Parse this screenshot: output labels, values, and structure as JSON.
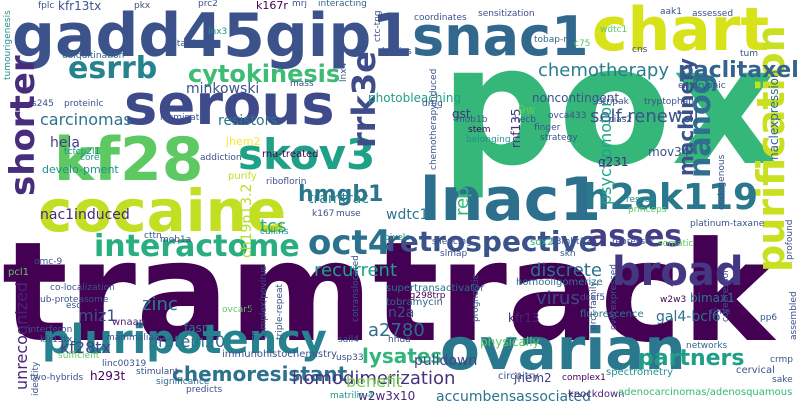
{
  "palette": {
    "dark_purple": "#440154",
    "indigo": "#3b528b",
    "teal": "#21918c",
    "green": "#5ec962",
    "yellow": "#fde725"
  },
  "words": [
    {
      "text": "tramtrack",
      "color": "#440154"
    },
    {
      "text": "pox",
      "color": "#35b779"
    },
    {
      "text": "gadd45gip1",
      "color": "#3b528b"
    },
    {
      "text": "snac1",
      "color": "#31688e"
    },
    {
      "text": "chart",
      "color": "#d7e219"
    },
    {
      "text": "serous",
      "color": "#3e4a89"
    },
    {
      "text": "kf28",
      "color": "#5ec962"
    },
    {
      "text": "cocaine",
      "color": "#c2df23"
    },
    {
      "text": "lnac1",
      "color": "#2d708e"
    },
    {
      "text": "ovarian",
      "color": "#2a788e"
    },
    {
      "text": "pluripotency",
      "color": "#26828e"
    },
    {
      "text": "skov3",
      "color": "#1fa187"
    },
    {
      "text": "purification",
      "color": "#c8e020"
    },
    {
      "text": "esrrb",
      "color": "#25838e"
    },
    {
      "text": "cytokinesis",
      "color": "#3dbc74"
    },
    {
      "text": "shorter",
      "color": "#472d7b"
    },
    {
      "text": "interactome",
      "color": "#29af7f"
    },
    {
      "text": "oct4",
      "color": "#2c728e"
    },
    {
      "text": "h2ak119",
      "color": "#2a788e"
    },
    {
      "text": "retrospective",
      "color": "#3b528b"
    },
    {
      "text": "broad",
      "color": "#453781"
    },
    {
      "text": "asses",
      "color": "#433e85"
    },
    {
      "text": "nanog",
      "color": "#2e6e8e"
    },
    {
      "text": "rrk3e",
      "color": "#3e4c8a"
    },
    {
      "text": "hmgb1",
      "color": "#2b758e"
    },
    {
      "text": "paclitaxel",
      "color": "#32648e"
    },
    {
      "text": "chemotherapy",
      "color": "#287d8e"
    },
    {
      "text": "chemoresistant",
      "color": "#2c718e"
    },
    {
      "text": "homodimerization",
      "color": "#46327e"
    },
    {
      "text": "unrecognized",
      "color": "#482475"
    },
    {
      "text": "self-renewal",
      "color": "#3a538b"
    },
    {
      "text": "machinery",
      "color": "#3b518b"
    },
    {
      "text": "partners",
      "color": "#1f9f88"
    },
    {
      "text": "lysates",
      "color": "#31b57b"
    },
    {
      "text": "carcinomas",
      "color": "#2c728e"
    },
    {
      "text": "tcs",
      "color": "#25ab82"
    },
    {
      "text": "tramtrac",
      "color": "#25848e"
    },
    {
      "text": "psychomotor",
      "color": "#20a386"
    },
    {
      "text": "reprogramming",
      "color": "#35b779"
    },
    {
      "text": "recurrent",
      "color": "#1fa088"
    },
    {
      "text": "discrete",
      "color": "#2d718e"
    },
    {
      "text": "zinc",
      "color": "#277f8e"
    },
    {
      "text": "miz1",
      "color": "#3b528b"
    },
    {
      "text": "protein20",
      "color": "#2c728e"
    },
    {
      "text": "kf28tx",
      "color": "#414487"
    },
    {
      "text": "a2780",
      "color": "#2e6d8e"
    },
    {
      "text": "virus",
      "color": "#3e4989"
    },
    {
      "text": "benefit",
      "color": "#7ad151"
    },
    {
      "text": "pulldown",
      "color": "#404688"
    },
    {
      "text": "w2w3x10",
      "color": "#482677"
    },
    {
      "text": "accumbensassociated",
      "color": "#2c738e"
    },
    {
      "text": "minkowski",
      "color": "#3b528b"
    },
    {
      "text": "resistors",
      "color": "#2a768e"
    },
    {
      "text": "hela",
      "color": "#433e85"
    },
    {
      "text": "nac1induced",
      "color": "#472a7a"
    },
    {
      "text": "ch19p13.2",
      "color": "#b5de2b"
    },
    {
      "text": "wdtc1",
      "color": "#2b748e"
    },
    {
      "text": "gal4-bcl6",
      "color": "#2d708e"
    },
    {
      "text": "bimax1",
      "color": "#2a768e"
    },
    {
      "text": "kfr13",
      "color": "#482475"
    },
    {
      "text": "n2a",
      "color": "#3b528b"
    },
    {
      "text": "tobramycin",
      "color": "#31688e"
    },
    {
      "text": "physically",
      "color": "#5ec962"
    },
    {
      "text": "jhem2",
      "color": "#414487"
    },
    {
      "text": "kfr13tx",
      "color": "#3b528b"
    },
    {
      "text": "q231",
      "color": "#472c7a"
    },
    {
      "text": "mov34",
      "color": "#3b518b"
    },
    {
      "text": "naclexpression",
      "color": "#31688e"
    },
    {
      "text": "sox2",
      "color": "#2db27d"
    },
    {
      "text": "gst",
      "color": "#46337f"
    },
    {
      "text": "rnf135",
      "color": "#472f7d"
    },
    {
      "text": "9w",
      "color": "#5ec962"
    },
    {
      "text": "noncontingent",
      "color": "#3b528b"
    },
    {
      "text": "photobleaching",
      "color": "#1f9e89"
    },
    {
      "text": "fasn",
      "color": "#2c738e"
    },
    {
      "text": "wnaap",
      "color": "#482475"
    },
    {
      "text": "mammalian",
      "color": "#3b528b"
    },
    {
      "text": "immunohistochemistry",
      "color": "#3b528b"
    },
    {
      "text": "h293t",
      "color": "#440154"
    },
    {
      "text": "linc00319",
      "color": "#3b528b"
    },
    {
      "text": "significance",
      "color": "#31688e"
    },
    {
      "text": "spectrometry",
      "color": "#21918c"
    },
    {
      "text": "supertransactivator",
      "color": "#2c728e"
    },
    {
      "text": "homooligomerize",
      "color": "#2c728e"
    },
    {
      "text": "fluorescence",
      "color": "#2a788e"
    },
    {
      "text": "knockdown",
      "color": "#482475"
    },
    {
      "text": "adenocarcinomas/adenosquamous",
      "color": "#35b779"
    },
    {
      "text": "cervical",
      "color": "#3b528b"
    },
    {
      "text": "networks",
      "color": "#31688e"
    },
    {
      "text": "circuitry",
      "color": "#3b528b"
    },
    {
      "text": "complex1",
      "color": "#440154"
    },
    {
      "text": "kfr13tx",
      "color": "#3b528b"
    },
    {
      "text": "pkx",
      "color": "#3b528b"
    },
    {
      "text": "prc2",
      "color": "#3b528b"
    },
    {
      "text": "k167r",
      "color": "#440154"
    },
    {
      "text": "mrj",
      "color": "#3b528b"
    },
    {
      "text": "interacting",
      "color": "#31688e"
    },
    {
      "text": "fplc",
      "color": "#3b528b"
    },
    {
      "text": "ubiquitination",
      "color": "#31688e"
    },
    {
      "text": "lnx3",
      "color": "#21918c"
    },
    {
      "text": "coordinates",
      "color": "#3b528b"
    },
    {
      "text": "sensitization",
      "color": "#3b528b"
    },
    {
      "text": "tobap-ms",
      "color": "#31688e"
    },
    {
      "text": "wdtc1",
      "color": "#5ec962"
    },
    {
      "text": "aak1",
      "color": "#3b528b"
    },
    {
      "text": "assessed",
      "color": "#3b528b"
    },
    {
      "text": "stag1",
      "color": "#3b528b"
    },
    {
      "text": "mass",
      "color": "#3b528b"
    },
    {
      "text": "illuminate",
      "color": "#3b528b"
    },
    {
      "text": "proteinlc",
      "color": "#3b528b"
    },
    {
      "text": "tcfcp2l1",
      "color": "#21918c"
    },
    {
      "text": "develo-pment",
      "color": "#21918c"
    },
    {
      "text": "core",
      "color": "#21918c"
    },
    {
      "text": "jhem2",
      "color": "#fde725"
    },
    {
      "text": "addiction",
      "color": "#3b528b"
    },
    {
      "text": "rna-treated",
      "color": "#440154"
    },
    {
      "text": "purify",
      "color": "#c2df23"
    },
    {
      "text": "riboflorin",
      "color": "#3b528b"
    },
    {
      "text": "cttn",
      "color": "#3b528b"
    },
    {
      "text": "k167",
      "color": "#3b528b"
    },
    {
      "text": "muse",
      "color": "#3b528b"
    },
    {
      "text": "cullins",
      "color": "#21918c"
    },
    {
      "text": "pixels",
      "color": "#21918c"
    },
    {
      "text": "silencing",
      "color": "#3b528b"
    },
    {
      "text": "slmap",
      "color": "#3b528b"
    },
    {
      "text": "mob1b",
      "color": "#3b528b"
    },
    {
      "text": "belonging",
      "color": "#21918c"
    },
    {
      "text": "stem",
      "color": "#440154"
    },
    {
      "text": "hecb",
      "color": "#3b528b"
    },
    {
      "text": "finger",
      "color": "#3b528b"
    },
    {
      "text": "strategy",
      "color": "#3b528b"
    },
    {
      "text": "ovca433",
      "color": "#3b528b"
    },
    {
      "text": "pias2",
      "color": "#3b528b"
    },
    {
      "text": "13mbt12",
      "color": "#3b528b"
    },
    {
      "text": "repressor",
      "color": "#3b528b"
    },
    {
      "text": "rescue",
      "color": "#21918c"
    },
    {
      "text": "princeps",
      "color": "#5ec962"
    },
    {
      "text": "platinum-taxane",
      "color": "#3b528b"
    },
    {
      "text": "endogenous",
      "color": "#3b528b"
    },
    {
      "text": "tryptophan",
      "color": "#3b528b"
    },
    {
      "text": "stripak",
      "color": "#3b528b"
    },
    {
      "text": "embryonic",
      "color": "#3b528b"
    },
    {
      "text": "cns",
      "color": "#3b528b"
    },
    {
      "text": "tum",
      "color": "#3b528b"
    },
    {
      "text": "ovcar5",
      "color": "#5ec962"
    },
    {
      "text": "complex/povirus",
      "color": "#3b528b"
    },
    {
      "text": "triple-repeat",
      "color": "#3b528b"
    },
    {
      "text": "amplification",
      "color": "#440154"
    },
    {
      "text": "usp33",
      "color": "#3b528b"
    },
    {
      "text": "hhua",
      "color": "#3b528b"
    },
    {
      "text": "p.arg298trp",
      "color": "#440154"
    },
    {
      "text": "dcaf5",
      "color": "#3b528b"
    },
    {
      "text": "prct-family",
      "color": "#3b528b"
    },
    {
      "text": "overexpressed",
      "color": "#3b528b"
    },
    {
      "text": "w2w3",
      "color": "#440154"
    },
    {
      "text": "pp6",
      "color": "#3b528b"
    },
    {
      "text": "corepressor",
      "color": "#3b528b"
    },
    {
      "text": "assembled",
      "color": "#3b528b"
    },
    {
      "text": "crmp",
      "color": "#3b528b"
    },
    {
      "text": "sake",
      "color": "#3b528b"
    },
    {
      "text": "rime",
      "color": "#3b528b"
    },
    {
      "text": "ub-proteasome",
      "color": "#3b528b"
    },
    {
      "text": "interferon",
      "color": "#3b528b"
    },
    {
      "text": "sufficient",
      "color": "#5ec962"
    },
    {
      "text": "two-hybrids",
      "color": "#3b528b"
    },
    {
      "text": "identity",
      "color": "#3b528b"
    },
    {
      "text": "co-localization",
      "color": "#3b528b"
    },
    {
      "text": "omc-9",
      "color": "#3b528b"
    },
    {
      "text": "esc",
      "color": "#3b528b"
    },
    {
      "text": "pcl1",
      "color": "#5ec962"
    },
    {
      "text": "predicts",
      "color": "#3b528b"
    },
    {
      "text": "stimulant",
      "color": "#3b528b"
    },
    {
      "text": "matrilin-4",
      "color": "#21918c"
    },
    {
      "text": "sall4",
      "color": "#3b528b"
    },
    {
      "text": "cotranslocated",
      "color": "#3b528b"
    },
    {
      "text": "prognostic",
      "color": "#3b528b"
    },
    {
      "text": "chemotherapyinduced",
      "color": "#3b528b"
    },
    {
      "text": "tumourigenesis",
      "color": "#21918c"
    },
    {
      "text": "s245",
      "color": "#3b528b"
    },
    {
      "text": "mob1a",
      "color": "#3b528b"
    },
    {
      "text": "lnx4",
      "color": "#3b528b"
    },
    {
      "text": "ctc-tng",
      "color": "#3b528b"
    },
    {
      "text": "bodies",
      "color": "#3b528b"
    },
    {
      "text": "c75",
      "color": "#5ec962"
    },
    {
      "text": "drug",
      "color": "#3b528b"
    },
    {
      "text": "skn",
      "color": "#3b528b"
    },
    {
      "text": "somatic",
      "color": "#5ec962"
    },
    {
      "text": "profound",
      "color": "#3b528b"
    }
  ]
}
